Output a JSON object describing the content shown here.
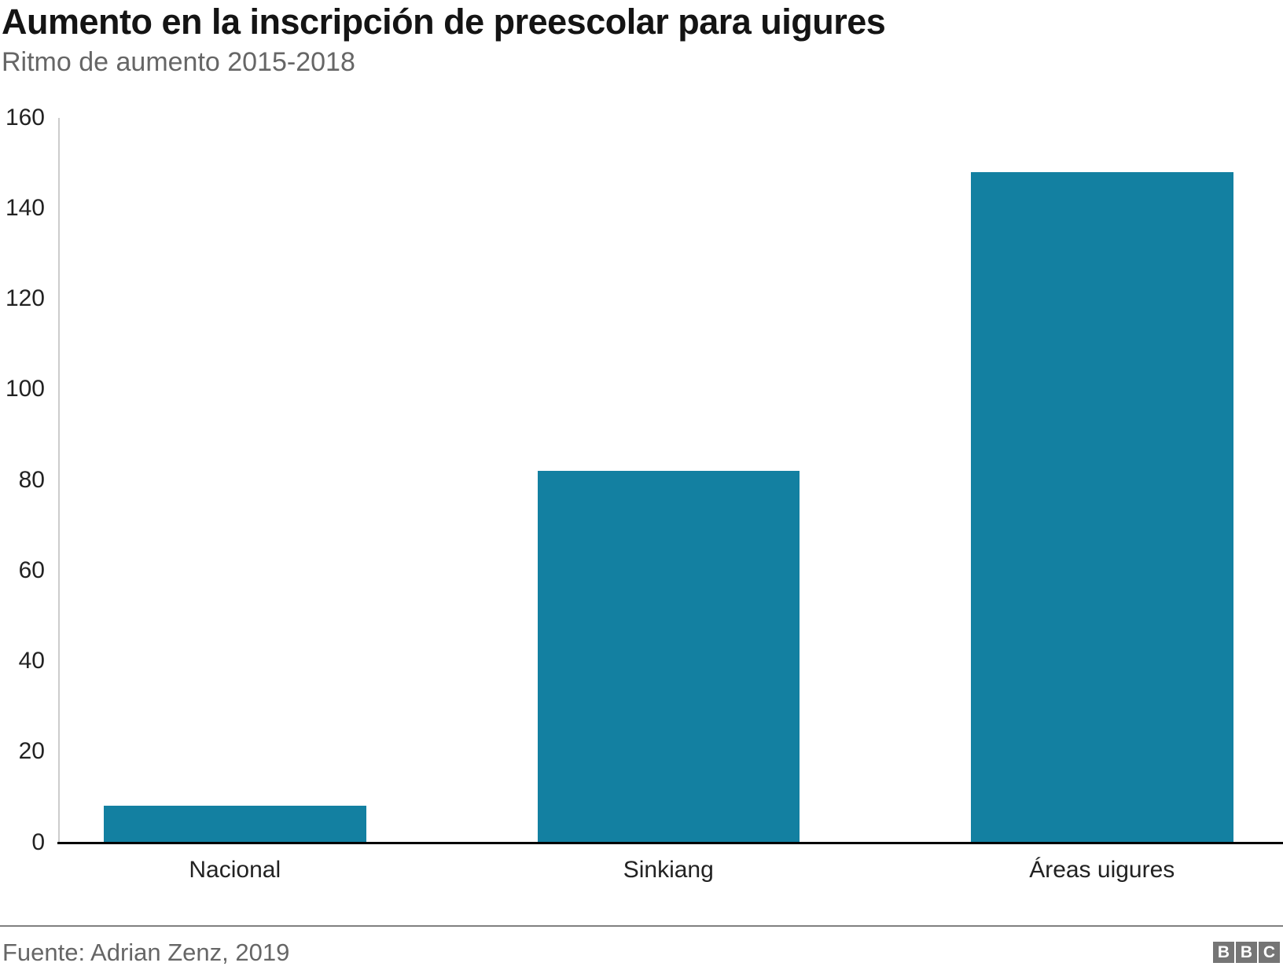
{
  "header": {
    "title": "Aumento en la inscripción de preescolar para uigures",
    "subtitle": "Ritmo de aumento 2015-2018"
  },
  "chart_data": {
    "type": "bar",
    "title": "Aumento en la inscripción de preescolar para uigures",
    "subtitle": "Ritmo de aumento 2015-2018",
    "categories": [
      "Nacional",
      "Sinkiang",
      "Áreas uigures"
    ],
    "values": [
      8,
      82,
      148
    ],
    "xlabel": "",
    "ylabel": "",
    "ylim": [
      0,
      160
    ],
    "yticks": [
      0,
      20,
      40,
      60,
      80,
      100,
      120,
      140,
      160
    ],
    "grid": false,
    "legend": "none",
    "bar_color": "#1380A1",
    "source": "Fuente: Adrian Zenz, 2019"
  },
  "footer": {
    "source_label": "Fuente: Adrian Zenz, 2019",
    "logo_letters": [
      "B",
      "B",
      "C"
    ]
  },
  "colors": {
    "bar": "#1380A1",
    "title": "#141414",
    "subtitle": "#666666",
    "axis_line": "#cccccc",
    "baseline": "#000000",
    "tick_label": "#222222",
    "separator": "#808080",
    "logo_background": "#757575"
  }
}
